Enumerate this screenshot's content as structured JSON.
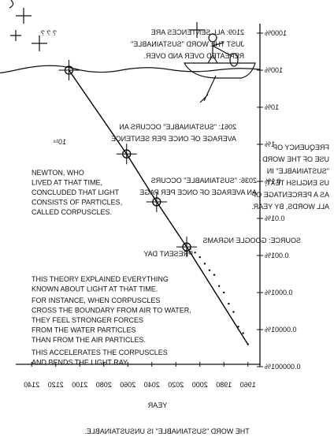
{
  "chart_data": {
    "type": "line",
    "title": "THE WORD \"SUSTAINABLE\" IS UNSUSTAINABLE.",
    "x_label": "YEAR",
    "y_label": [
      "FREQUENCY OF",
      "USE OF THE WORD",
      "\"SUSTAINABLE\" IN",
      "US ENGLISH TEXT,",
      "AS A PERCENTAGE OF",
      "ALL WORDS, BY YEAR."
    ],
    "source": "SOURCE: GOOGLE NGRAMS",
    "annotations": [
      "? ? ?",
      "10¹⁶"
    ],
    "xlim": [
      1950,
      2150
    ],
    "xticks": [
      1960,
      1980,
      2000,
      2020,
      2040,
      2060,
      2080,
      2100,
      2120,
      2140
    ],
    "ylim": [
      1e-06,
      1800
    ],
    "log_y": true,
    "yticks": [
      {
        "value": 1000,
        "label": "1000%"
      },
      {
        "value": 100,
        "label": "100%"
      },
      {
        "value": 10,
        "label": "10%"
      },
      {
        "value": 1,
        "label": "1%"
      },
      {
        "value": 0.1,
        "label": "0.1%"
      },
      {
        "value": 0.01,
        "label": "0.01%"
      },
      {
        "value": 0.001,
        "label": "0.001%"
      },
      {
        "value": 0.0001,
        "label": "0.0001%"
      },
      {
        "value": 1e-05,
        "label": "0.00001%"
      },
      {
        "value": 1e-06,
        "label": "0.000001%"
      }
    ],
    "mirrored": true,
    "series": [
      {
        "kind": "scatter",
        "color": "#000000",
        "x": [
          1960,
          1964,
          1968,
          1972,
          1976,
          1980,
          1984,
          1988,
          1992,
          1996,
          2000,
          2004,
          2008
        ],
        "values": [
          4e-06,
          8e-06,
          1.2e-05,
          3e-05,
          5e-05,
          0.0001,
          0.00015,
          0.0003,
          0.0004,
          0.0006,
          0.0009,
          0.0012,
          0.0015
        ]
      },
      {
        "kind": "trend",
        "color": "#000000",
        "x": [
          1960,
          2011,
          2036,
          2061,
          2109
        ],
        "values": [
          4e-06,
          0.0017,
          0.028,
          0.55,
          100
        ],
        "point_labels": [
          null,
          [
            "PRESENT DAY"
          ],
          [
            "2036: \"SUSTAINABLE\" OCCURS",
            "AN AVERAGE OF ONCE PER PAGE"
          ],
          [
            "2061: \"SUSTAINABLE\" OCCURS AN",
            "AVERAGE OF ONCE PER SENTENCE"
          ],
          [
            "2109: ALL SENTENCES ARE",
            "JUST THE WORD \"SUSTAINABLE\"",
            "REPEATED OVER AND OVER."
          ]
        ]
      }
    ]
  },
  "overlay_text": [
    [
      "NEWTON, WHO",
      "LIVED AT THAT TIME,",
      "CONCLUDED THAT LIGHT",
      "CONSISTS OF PARTICLES,",
      "CALLED CORPUSCLES."
    ],
    [
      "THIS THEORY EXPLAINED EVERYTHING",
      "KNOWN ABOUT LIGHT AT THAT TIME."
    ],
    [
      "FOR INSTANCE, WHEN CORPUSCLES",
      "CROSS THE BOUNDARY FROM AIR TO WATER,",
      "THEY FEEL STRONGER FORCES",
      "FROM THE WATER PARTICLES",
      "THAN FROM THE AIR PARTICLES."
    ],
    [
      "THIS ACCELERATES THE CORPUSCLES",
      "AND BENDS THE LIGHT RAY."
    ]
  ]
}
